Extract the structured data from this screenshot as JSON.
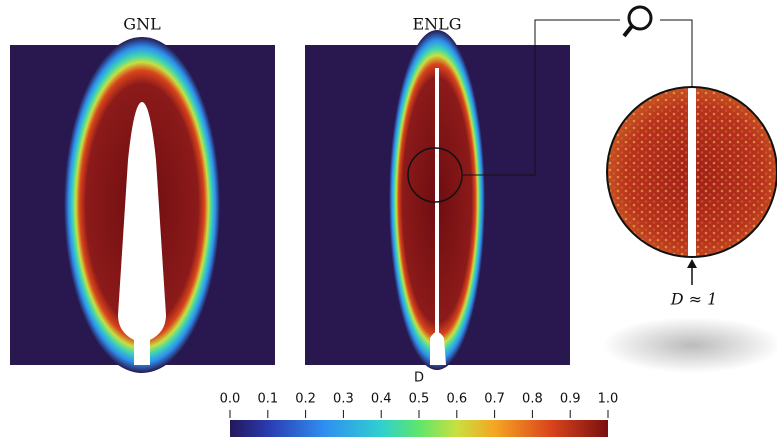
{
  "panels": [
    {
      "title": "GNL"
    },
    {
      "title": "ENLG"
    }
  ],
  "colorbar": {
    "label": "D",
    "ticks": [
      {
        "value": 0,
        "label": "0.0"
      },
      {
        "value": 0.1,
        "label": "0.1"
      },
      {
        "value": 0.2,
        "label": "0.2"
      },
      {
        "value": 0.3,
        "label": "0.3"
      },
      {
        "value": 0.4,
        "label": "0.4"
      },
      {
        "value": 0.5,
        "label": "0.5"
      },
      {
        "value": 0.6,
        "label": "0.6"
      },
      {
        "value": 0.7,
        "label": "0.7"
      },
      {
        "value": 0.8,
        "label": "0.8"
      },
      {
        "value": 0.9,
        "label": "0.9"
      },
      {
        "value": 1,
        "label": "1.0"
      }
    ]
  },
  "zoom": {
    "annotation": "D ≈ 1"
  }
}
